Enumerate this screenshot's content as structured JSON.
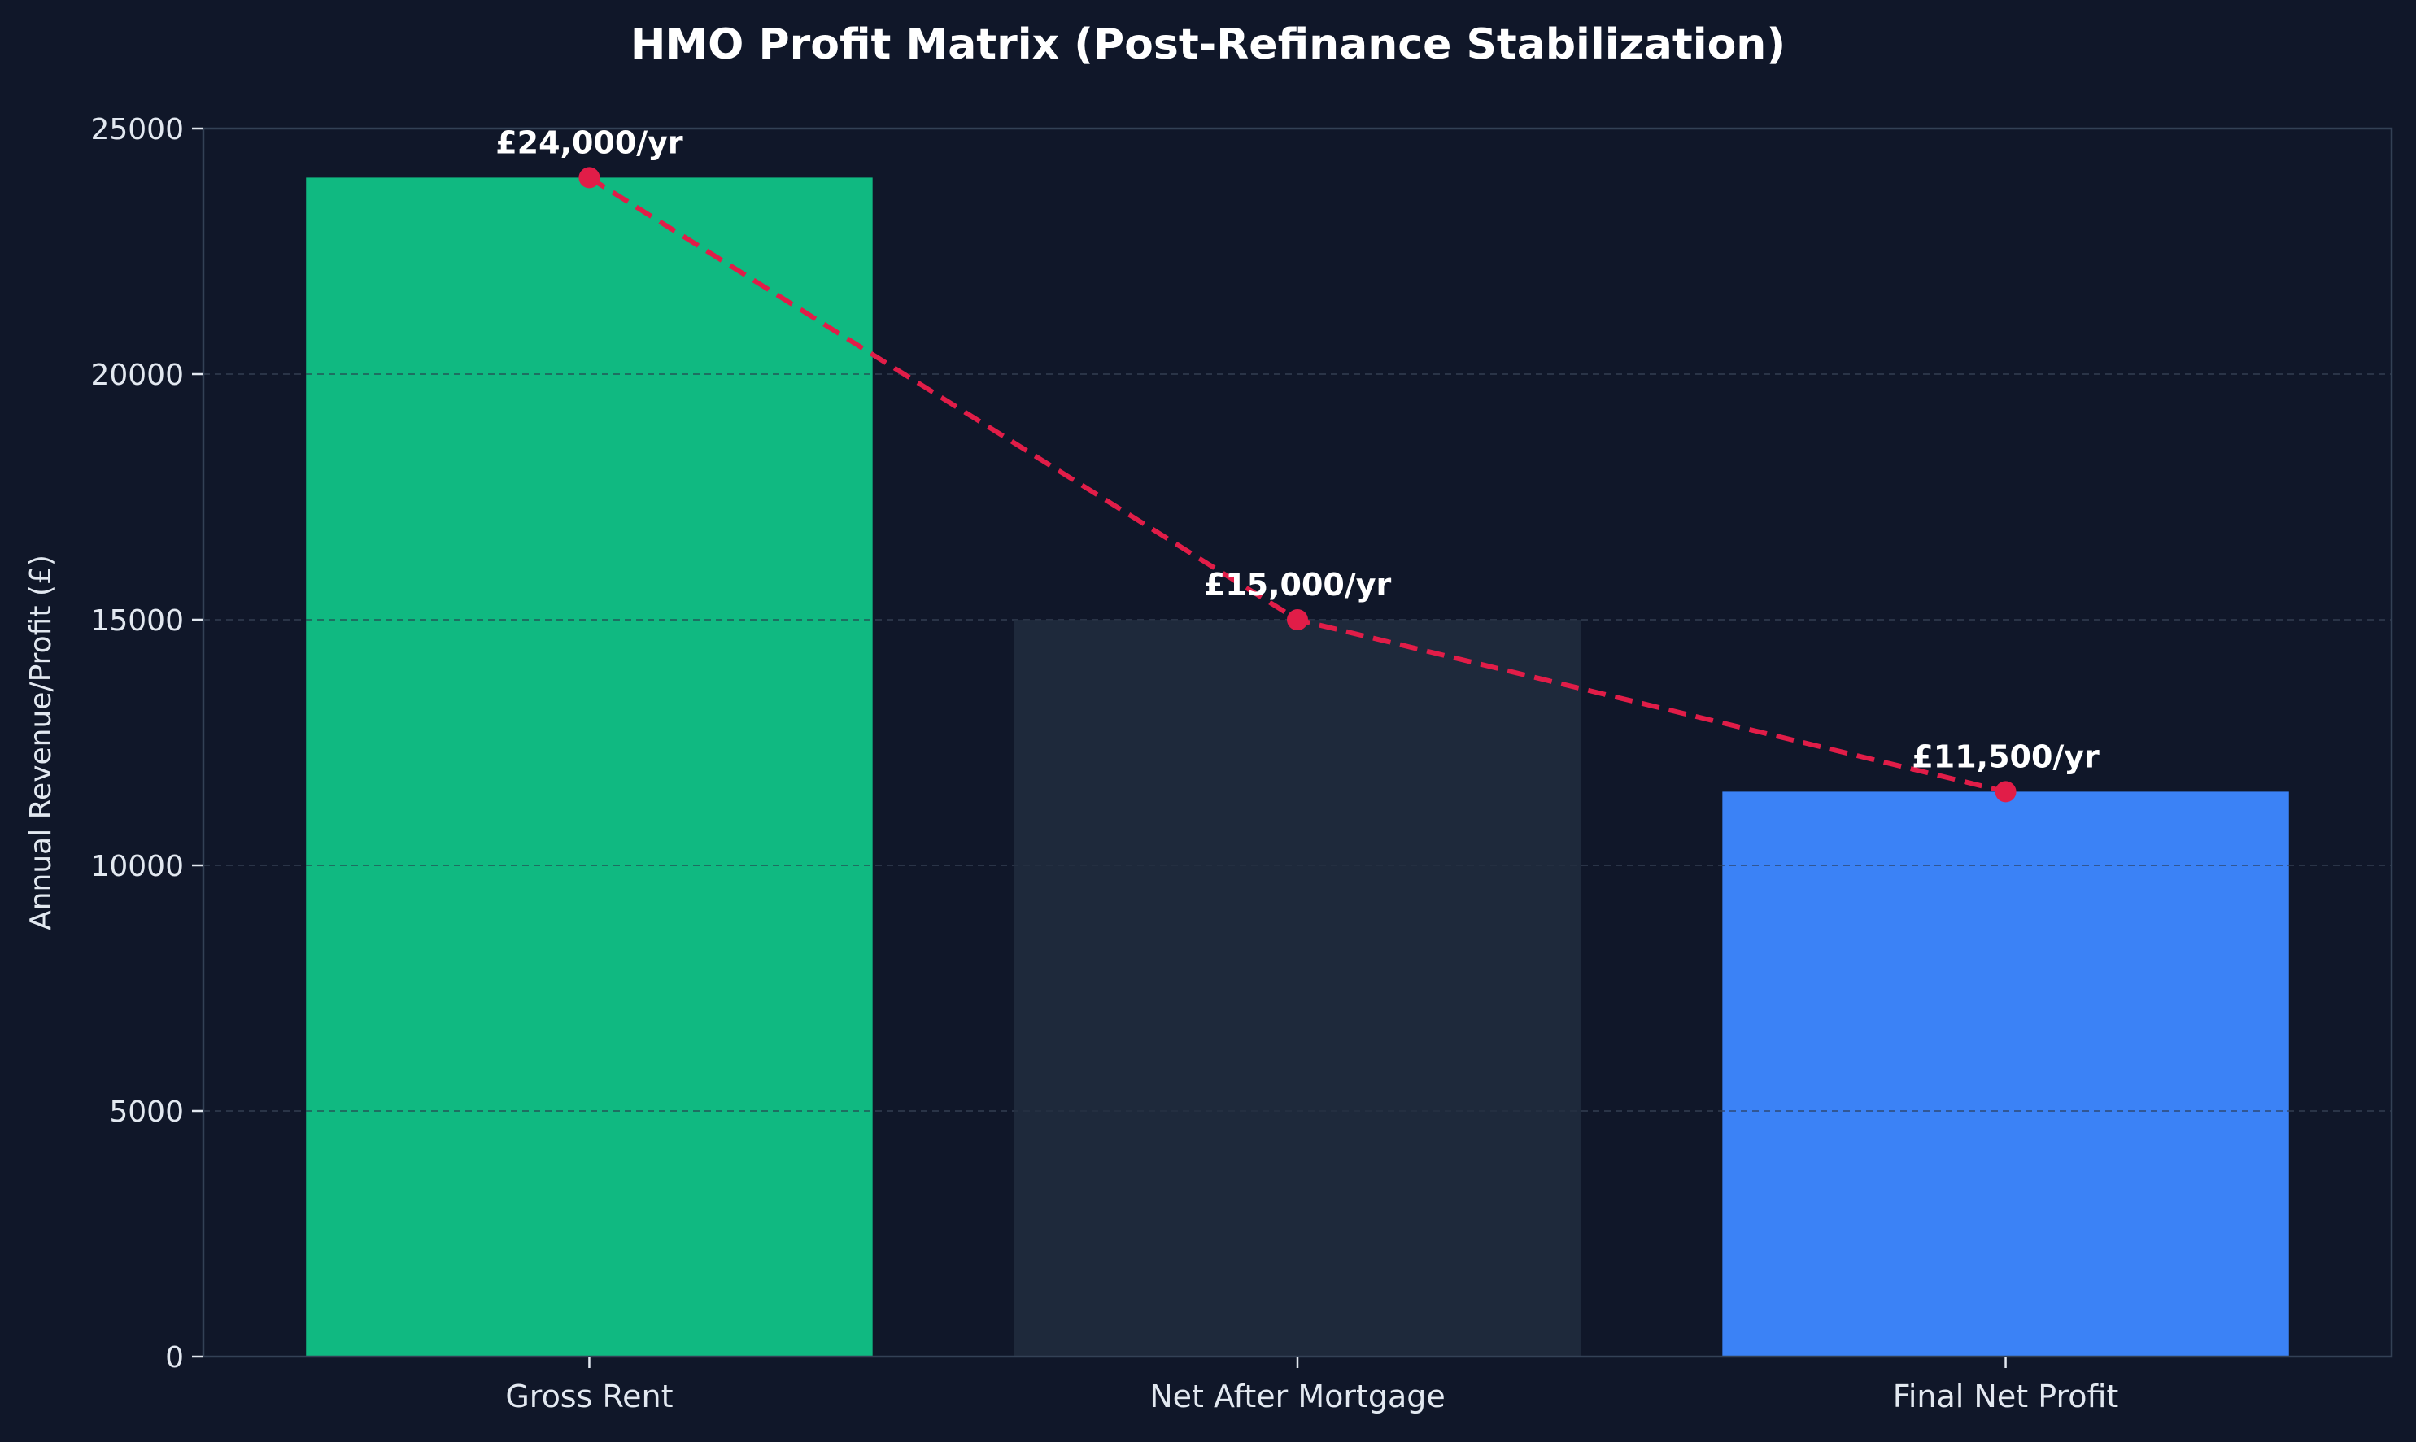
{
  "chart_data": {
    "type": "bar",
    "title": "HMO Profit Matrix (Post-Refinance Stabilization)",
    "xlabel": "",
    "ylabel": "Annual Revenue/Profit (£)",
    "categories": [
      "Gross Rent",
      "Net After Mortgage",
      "Final Net Profit"
    ],
    "values": [
      24000,
      15000,
      11500
    ],
    "data_labels": [
      "£24,000/yr",
      "£15,000/yr",
      "£11,500/yr"
    ],
    "ylim": [
      0,
      25000
    ],
    "yticks": [
      0,
      5000,
      10000,
      15000,
      20000,
      25000
    ],
    "ytick_labels": [
      "0",
      "5000",
      "10000",
      "15000",
      "20000",
      "25000"
    ],
    "grid": "horizontal dashed",
    "overlay": {
      "type": "line",
      "style": "dashed",
      "marker": "circle",
      "values": [
        24000,
        15000,
        11500
      ]
    },
    "colors": {
      "background": "#101729",
      "bars": [
        "#10b981",
        "#1e293b",
        "#3b82f6"
      ],
      "line": "#e11d48",
      "text": "#ffffff",
      "tick_text": "#e2e8f0",
      "axis": "#334155",
      "grid": "#2a3447"
    }
  }
}
